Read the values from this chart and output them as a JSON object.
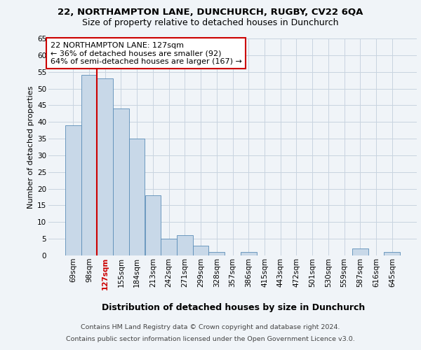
{
  "title1": "22, NORTHAMPTON LANE, DUNCHURCH, RUGBY, CV22 6QA",
  "title2": "Size of property relative to detached houses in Dunchurch",
  "xlabel": "Distribution of detached houses by size in Dunchurch",
  "ylabel": "Number of detached properties",
  "categories": [
    "69sqm",
    "98sqm",
    "127sqm",
    "155sqm",
    "184sqm",
    "213sqm",
    "242sqm",
    "271sqm",
    "299sqm",
    "328sqm",
    "357sqm",
    "386sqm",
    "415sqm",
    "443sqm",
    "472sqm",
    "501sqm",
    "530sqm",
    "559sqm",
    "587sqm",
    "616sqm",
    "645sqm"
  ],
  "values": [
    39,
    54,
    53,
    44,
    35,
    18,
    5,
    6,
    3,
    1,
    0,
    1,
    0,
    0,
    0,
    0,
    0,
    0,
    2,
    0,
    1
  ],
  "bar_color": "#c8d8e8",
  "bar_edge_color": "#5b8db8",
  "highlight_index": 2,
  "red_line_color": "#cc0000",
  "annotation_text": "22 NORTHAMPTON LANE: 127sqm\n← 36% of detached houses are smaller (92)\n64% of semi-detached houses are larger (167) →",
  "annotation_box_color": "#ffffff",
  "annotation_box_edge": "#cc0000",
  "footnote1": "Contains HM Land Registry data © Crown copyright and database right 2024.",
  "footnote2": "Contains public sector information licensed under the Open Government Licence v3.0.",
  "ylim": [
    0,
    65
  ],
  "yticks": [
    0,
    5,
    10,
    15,
    20,
    25,
    30,
    35,
    40,
    45,
    50,
    55,
    60,
    65
  ],
  "background_color": "#f0f4f8",
  "grid_color": "#c8d4e0",
  "title1_fontsize": 9.5,
  "title2_fontsize": 9,
  "xlabel_fontsize": 9,
  "ylabel_fontsize": 8,
  "tick_fontsize": 7.5,
  "annotation_fontsize": 8,
  "footnote_fontsize": 6.8
}
